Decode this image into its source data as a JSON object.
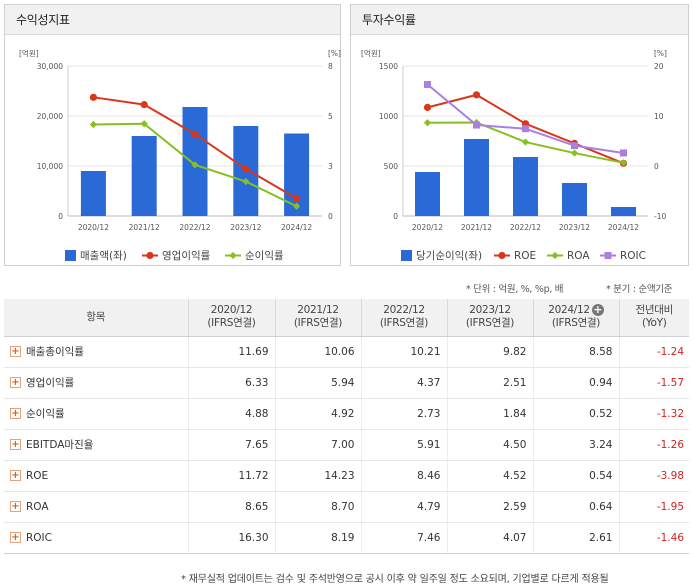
{
  "left_panel": {
    "title": "수익성지표",
    "y_left_unit": "[억원]",
    "y_right_unit": "[%]",
    "legend": {
      "revenue": "매출액(좌)",
      "op_margin": "영업이익률",
      "net_margin": "순이익률"
    }
  },
  "right_panel": {
    "title": "투자수익률",
    "y_left_unit": "[억원]",
    "y_right_unit": "[%]",
    "legend": {
      "net_income": "당기순이익(좌)",
      "roe": "ROE",
      "roa": "ROA",
      "roic": "ROIC"
    }
  },
  "chart_data": [
    {
      "type": "bar+line",
      "title": "수익성지표",
      "categories": [
        "2020/12",
        "2021/12",
        "2022/12",
        "2023/12",
        "2024/12"
      ],
      "y_left": {
        "label": "[억원]",
        "ticks": [
          "30,000",
          "20,000",
          "10,000",
          "0"
        ],
        "range": [
          0,
          30000
        ]
      },
      "y_right": {
        "label": "[%]",
        "ticks": [
          "8",
          "5",
          "3",
          "0"
        ],
        "range": [
          0,
          8
        ]
      },
      "bars": {
        "name": "매출액(좌)",
        "color": "#2a6ad6",
        "values": [
          9000,
          16000,
          21800,
          18000,
          16500
        ]
      },
      "lines": [
        {
          "name": "영업이익률",
          "color": "#d9371b",
          "marker": "circle",
          "values": [
            6.33,
            5.94,
            4.37,
            2.51,
            0.94
          ]
        },
        {
          "name": "순이익률",
          "color": "#86bf21",
          "marker": "diamond",
          "values": [
            4.88,
            4.92,
            2.73,
            1.84,
            0.52
          ]
        }
      ]
    },
    {
      "type": "bar+line",
      "title": "투자수익률",
      "categories": [
        "2020/12",
        "2021/12",
        "2022/12",
        "2023/12",
        "2024/12"
      ],
      "y_left": {
        "label": "[억원]",
        "ticks": [
          "1500",
          "1000",
          "500",
          "0"
        ],
        "range": [
          0,
          1500
        ]
      },
      "y_right": {
        "label": "[%]",
        "ticks": [
          "20",
          "10",
          "0",
          "-10"
        ],
        "range": [
          -10,
          20
        ]
      },
      "bars": {
        "name": "당기순이익(좌)",
        "color": "#2a6ad6",
        "values": [
          440,
          770,
          590,
          330,
          90
        ]
      },
      "lines": [
        {
          "name": "ROE",
          "color": "#d9371b",
          "marker": "circle",
          "values": [
            11.72,
            14.23,
            8.46,
            4.52,
            0.54
          ]
        },
        {
          "name": "ROA",
          "color": "#86bf21",
          "marker": "diamond",
          "values": [
            8.65,
            8.7,
            4.79,
            2.59,
            0.64
          ]
        },
        {
          "name": "ROIC",
          "color": "#a97fe2",
          "marker": "square",
          "values": [
            16.3,
            8.19,
            7.46,
            4.07,
            2.61
          ]
        }
      ]
    }
  ],
  "notes": {
    "unit": "* 단위 : 억원, %, %p, 배",
    "period": "* 분기 : 순액기준"
  },
  "table": {
    "header_item": "항목",
    "columns": [
      {
        "year": "2020/12",
        "basis": "(IFRS연결)"
      },
      {
        "year": "2021/12",
        "basis": "(IFRS연결)"
      },
      {
        "year": "2022/12",
        "basis": "(IFRS연결)"
      },
      {
        "year": "2023/12",
        "basis": "(IFRS연결)"
      },
      {
        "year": "2024/12",
        "basis": "(IFRS연결)"
      }
    ],
    "yoy_header": {
      "line1": "전년대비",
      "line2": "(YoY)"
    },
    "add_icon": "+",
    "rows": [
      {
        "label": "매출총이익률",
        "values": [
          "11.69",
          "10.06",
          "10.21",
          "9.82",
          "8.58"
        ],
        "yoy": "-1.24"
      },
      {
        "label": "영업이익률",
        "values": [
          "6.33",
          "5.94",
          "4.37",
          "2.51",
          "0.94"
        ],
        "yoy": "-1.57"
      },
      {
        "label": "순이익률",
        "values": [
          "4.88",
          "4.92",
          "2.73",
          "1.84",
          "0.52"
        ],
        "yoy": "-1.32"
      },
      {
        "label": "EBITDA마진율",
        "values": [
          "7.65",
          "7.00",
          "5.91",
          "4.50",
          "3.24"
        ],
        "yoy": "-1.26"
      },
      {
        "label": "ROE",
        "values": [
          "11.72",
          "14.23",
          "8.46",
          "4.52",
          "0.54"
        ],
        "yoy": "-3.98"
      },
      {
        "label": "ROA",
        "values": [
          "8.65",
          "8.70",
          "4.79",
          "2.59",
          "0.64"
        ],
        "yoy": "-1.95"
      },
      {
        "label": "ROIC",
        "values": [
          "16.30",
          "8.19",
          "7.46",
          "4.07",
          "2.61"
        ],
        "yoy": "-1.46"
      }
    ]
  },
  "footer": "* 재무실적 업데이트는 검수 및 주석반영으로 공시 이후 약 일주일 정도 소요되며, 기업별로 다르게 적용될"
}
